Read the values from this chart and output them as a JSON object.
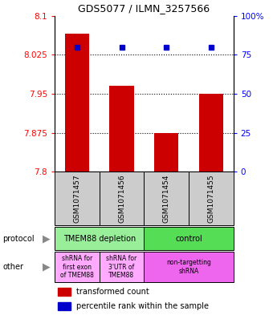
{
  "title": "GDS5077 / ILMN_3257566",
  "samples": [
    "GSM1071457",
    "GSM1071456",
    "GSM1071454",
    "GSM1071455"
  ],
  "red_values": [
    8.065,
    7.965,
    7.875,
    7.95
  ],
  "blue_marker_pct": [
    80,
    80,
    80,
    80
  ],
  "ylim_left": [
    7.8,
    8.1
  ],
  "ylim_right": [
    0,
    100
  ],
  "yticks_left": [
    7.8,
    7.875,
    7.95,
    8.025,
    8.1
  ],
  "yticks_right": [
    0,
    25,
    50,
    75,
    100
  ],
  "ytick_labels_left": [
    "7.8",
    "7.875",
    "7.95",
    "8.025",
    "8.1"
  ],
  "ytick_labels_right": [
    "0",
    "25",
    "50",
    "75",
    "100%"
  ],
  "bar_width": 0.55,
  "protocol_labels": [
    "TMEM88 depletion",
    "control"
  ],
  "protocol_colors": [
    "#99ee99",
    "#55dd55"
  ],
  "other_labels_left1": "shRNA for\nfirst exon\nof TMEM88",
  "other_labels_left2": "shRNA for\n3'UTR of\nTMEM88",
  "other_labels_right": "non-targetting\nshRNA",
  "other_color_left": "#ffaaff",
  "other_color_right": "#ee66ee",
  "sample_box_color": "#cccccc",
  "red_color": "#cc0000",
  "blue_color": "#0000cc",
  "legend_red": "transformed count",
  "legend_blue": "percentile rank within the sample"
}
